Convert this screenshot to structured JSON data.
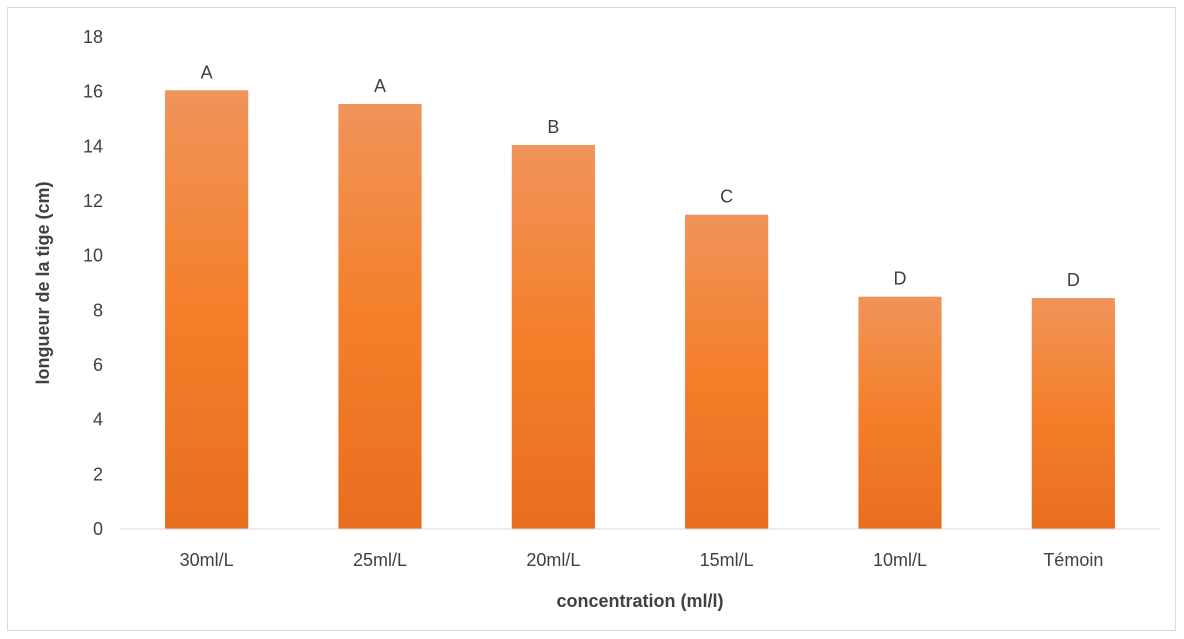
{
  "chart_data": {
    "type": "bar",
    "title": "",
    "xlabel": "concentration (ml/l)",
    "ylabel": "longueur de la tige (cm)",
    "categories": [
      "30ml/L",
      "25ml/L",
      "20ml/L",
      "15ml/L",
      "10ml/L",
      "Témoin"
    ],
    "values": [
      16.05,
      15.55,
      14.05,
      11.5,
      8.5,
      8.45
    ],
    "data_labels": [
      "A",
      "A",
      "B",
      "C",
      "D",
      "D"
    ],
    "ylim": [
      0,
      18
    ],
    "yticks": [
      "0",
      "2",
      "4",
      "6",
      "8",
      "10",
      "12",
      "14",
      "16",
      "18"
    ],
    "grid": false,
    "legend": "none",
    "bar_color_top": "#F0945A",
    "bar_color_bottom": "#E86E1F"
  }
}
